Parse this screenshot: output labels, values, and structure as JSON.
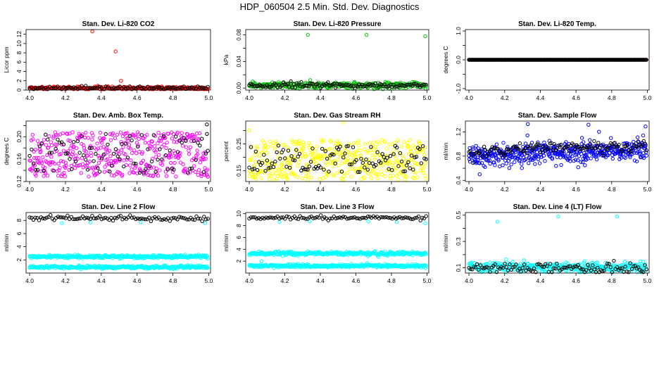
{
  "figure": {
    "title": "HDP_060504  2.5 Min. Std. Dev. Diagnostics"
  },
  "chart_data": [
    {
      "id": "co2",
      "type": "scatter",
      "title": "Stan. Dev. Li-820 CO2",
      "xlabel": "",
      "ylabel": "Licor ppm",
      "xlim": [
        3.98,
        5.01
      ],
      "ylim": [
        0,
        13
      ],
      "xticks": [
        4.0,
        4.2,
        4.4,
        4.6,
        4.8,
        5.0
      ],
      "yticks": [
        0,
        2,
        4,
        6,
        8,
        10,
        12
      ],
      "series": [
        {
          "name": "primary",
          "color": "#ff0000",
          "gen": {
            "n": 260,
            "base": 0.42,
            "noise": 0.18,
            "seed": 11
          },
          "outliers": [
            [
              4.35,
              12.6
            ],
            [
              4.48,
              8.3
            ],
            [
              4.51,
              2.0
            ],
            [
              4.38,
              0.9
            ]
          ]
        },
        {
          "name": "secondary",
          "color": "#000000",
          "gen": {
            "n": 90,
            "base": 0.5,
            "noise": 0.15,
            "seed": 12
          }
        }
      ]
    },
    {
      "id": "pressure",
      "type": "scatter",
      "title": "Stan. Dev. Li-820 Pressure",
      "xlabel": "",
      "ylabel": "kPa",
      "xlim": [
        3.98,
        5.01
      ],
      "ylim": [
        -0.003,
        0.088
      ],
      "xticks": [
        4.0,
        4.2,
        4.4,
        4.6,
        4.8,
        5.0
      ],
      "yticks": [
        0.0,
        0.02,
        0.04,
        0.06,
        0.08
      ],
      "ytickLabels": [
        "0.00",
        "",
        "0.04",
        "",
        "0.08"
      ],
      "series": [
        {
          "name": "primary",
          "color": "#00c000",
          "gen": {
            "n": 300,
            "base": 0.0045,
            "noise": 0.0025,
            "seed": 21
          },
          "outliers": [
            [
              4.33,
              0.08
            ],
            [
              4.66,
              0.08
            ],
            [
              4.99,
              0.078
            ]
          ]
        },
        {
          "name": "secondary",
          "color": "#000000",
          "gen": {
            "n": 120,
            "base": 0.004,
            "noise": 0.002,
            "seed": 22
          }
        }
      ]
    },
    {
      "id": "temp",
      "type": "scatter",
      "title": "Stan. Dev. Li-820 Temp.",
      "xlabel": "",
      "ylabel": "degrees C",
      "xlim": [
        3.98,
        5.01
      ],
      "ylim": [
        -1.05,
        1.05
      ],
      "xticks": [
        4.0,
        4.2,
        4.4,
        4.6,
        4.8,
        5.0
      ],
      "yticks": [
        -1.0,
        -0.5,
        0.0,
        0.5,
        1.0
      ],
      "ytickLabels": [
        "-1.0",
        "",
        "0.0",
        "",
        "1.0"
      ],
      "series": [
        {
          "name": "primary",
          "color": "#ff00ff",
          "gen": {
            "n": 60,
            "base": 0.0,
            "noise": 0.0,
            "seed": 31
          }
        },
        {
          "name": "secondary",
          "color": "#000000",
          "gen": {
            "n": 260,
            "base": 0.0,
            "noise": 0.0,
            "seed": 32
          }
        }
      ]
    },
    {
      "id": "ambbox",
      "type": "scatter",
      "title": "Stan. Dev. Amb. Box Temp.",
      "xlabel": "",
      "ylabel": "degrees C",
      "xlim": [
        3.98,
        5.01
      ],
      "ylim": [
        0.12,
        0.228
      ],
      "xticks": [
        4.0,
        4.2,
        4.4,
        4.6,
        4.8,
        5.0
      ],
      "yticks": [
        0.12,
        0.14,
        0.16,
        0.18,
        0.2,
        0.22
      ],
      "ytickLabels": [
        "0.12",
        "",
        "0.16",
        "",
        "0.20",
        ""
      ],
      "series": [
        {
          "name": "primary",
          "color": "#ff00ff",
          "gen": {
            "n": 420,
            "base": 0.168,
            "noise": 0.04,
            "seed": 41,
            "uniform": true
          }
        },
        {
          "name": "secondary",
          "color": "#000000",
          "gen": {
            "n": 90,
            "base": 0.17,
            "noise": 0.035,
            "seed": 42,
            "uniform": true
          },
          "outliers": [
            [
              4.99,
              0.222
            ],
            [
              4.99,
              0.205
            ]
          ]
        }
      ]
    },
    {
      "id": "rh",
      "type": "scatter",
      "title": "Stan. Dev. Gas Stream RH",
      "xlabel": "",
      "ylabel": "percent",
      "xlim": [
        3.98,
        5.01
      ],
      "ylim": [
        0.11,
        0.335
      ],
      "xticks": [
        4.0,
        4.2,
        4.4,
        4.6,
        4.8,
        5.0
      ],
      "yticks": [
        0.15,
        0.2,
        0.25,
        0.3
      ],
      "ytickLabels": [
        "0.15",
        "",
        "0.25",
        ""
      ],
      "series": [
        {
          "name": "primary",
          "color": "#ffff00",
          "gen": {
            "n": 420,
            "base": 0.19,
            "noise": 0.075,
            "seed": 51,
            "uniform": true
          },
          "outliers": [
            [
              4.53,
              0.33
            ],
            [
              4.0,
              0.3
            ]
          ]
        },
        {
          "name": "secondary",
          "color": "#000000",
          "gen": {
            "n": 110,
            "base": 0.195,
            "noise": 0.05,
            "seed": 52,
            "uniform": true
          }
        }
      ]
    },
    {
      "id": "sampleflow",
      "type": "scatter",
      "title": "Stan. Dev. Sample Flow",
      "xlabel": "",
      "ylabel": "ml/min",
      "xlim": [
        3.98,
        5.01
      ],
      "ylim": [
        0.38,
        1.38
      ],
      "xticks": [
        4.0,
        4.2,
        4.4,
        4.6,
        4.8,
        5.0
      ],
      "yticks": [
        0.4,
        0.6,
        0.8,
        1.0,
        1.2
      ],
      "ytickLabels": [
        "0.4",
        "",
        "0.8",
        "",
        "1.2"
      ],
      "series": [
        {
          "name": "primary",
          "color": "#0000ff",
          "gen": {
            "n": 480,
            "base": 0.78,
            "slope": 0.25,
            "noise": 0.09,
            "seed": 61
          },
          "outliers": [
            [
              4.33,
              1.33
            ],
            [
              4.67,
              1.32
            ],
            [
              4.99,
              1.29
            ],
            [
              4.06,
              0.5
            ],
            [
              4.09,
              0.62
            ],
            [
              4.37,
              0.67
            ],
            [
              4.65,
              0.65
            ]
          ]
        },
        {
          "name": "secondary",
          "color": "#000000",
          "gen": {
            "n": 130,
            "base": 0.87,
            "slope": 0.2,
            "noise": 0.05,
            "seed": 62
          }
        }
      ]
    },
    {
      "id": "line2",
      "type": "scatter",
      "title": "Stan. Dev. Line 2 Flow",
      "xlabel": "",
      "ylabel": "ml/min",
      "xlim": [
        3.98,
        5.01
      ],
      "ylim": [
        0,
        9.2
      ],
      "xticks": [
        4.0,
        4.2,
        4.4,
        4.6,
        4.8,
        5.0
      ],
      "yticks": [
        2,
        4,
        6,
        8
      ],
      "series": [
        {
          "name": "primary-high",
          "color": "#00ffff",
          "gen": {
            "n": 330,
            "base": 2.5,
            "noise": 0.12,
            "seed": 71
          }
        },
        {
          "name": "primary-low",
          "color": "#00ffff",
          "gen": {
            "n": 330,
            "base": 0.9,
            "noise": 0.12,
            "seed": 72
          },
          "outliers": [
            [
              4.18,
              7.6
            ],
            [
              4.34,
              7.7
            ],
            [
              4.62,
              7.7
            ],
            [
              4.98,
              7.6
            ]
          ]
        },
        {
          "name": "secondary",
          "color": "#000000",
          "gen": {
            "n": 95,
            "base": 8.3,
            "noise": 0.18,
            "seed": 73
          }
        }
      ]
    },
    {
      "id": "line3",
      "type": "scatter",
      "title": "Stan. Dev. Line 3 Flow",
      "xlabel": "",
      "ylabel": "ml/min",
      "xlim": [
        3.98,
        5.01
      ],
      "ylim": [
        0,
        10.2
      ],
      "xticks": [
        4.0,
        4.2,
        4.4,
        4.6,
        4.8,
        5.0
      ],
      "yticks": [
        2,
        4,
        6,
        8,
        10
      ],
      "series": [
        {
          "name": "primary-high",
          "color": "#00ffff",
          "gen": {
            "n": 330,
            "base": 3.3,
            "noise": 0.15,
            "seed": 81
          }
        },
        {
          "name": "primary-low",
          "color": "#00ffff",
          "gen": {
            "n": 330,
            "base": 1.2,
            "noise": 0.13,
            "seed": 82
          },
          "outliers": [
            [
              4.17,
              8.6
            ],
            [
              4.34,
              8.7
            ],
            [
              4.67,
              8.7
            ],
            [
              4.83,
              8.6
            ],
            [
              4.99,
              8.4
            ],
            [
              4.07,
              2.0
            ]
          ]
        },
        {
          "name": "secondary",
          "color": "#000000",
          "gen": {
            "n": 95,
            "base": 9.3,
            "noise": 0.15,
            "seed": 83
          }
        }
      ]
    },
    {
      "id": "line4",
      "type": "scatter",
      "title": "Stan. Dev. Line 4 (LT) Flow",
      "xlabel": "",
      "ylabel": "ml/min",
      "xlim": [
        3.98,
        5.01
      ],
      "ylim": [
        0.06,
        0.52
      ],
      "xticks": [
        4.0,
        4.2,
        4.4,
        4.6,
        4.8,
        5.0
      ],
      "yticks": [
        0.1,
        0.2,
        0.3,
        0.4,
        0.5
      ],
      "ytickLabels": [
        "0.1",
        "",
        "0.3",
        "",
        "0.5"
      ],
      "series": [
        {
          "name": "primary",
          "color": "#00ffff",
          "gen": {
            "n": 330,
            "base": 0.105,
            "noise": 0.02,
            "seed": 91
          },
          "outliers": [
            [
              4.16,
              0.45
            ],
            [
              4.5,
              0.49
            ],
            [
              4.83,
              0.49
            ]
          ]
        },
        {
          "name": "secondary",
          "color": "#000000",
          "gen": {
            "n": 110,
            "base": 0.1,
            "noise": 0.018,
            "seed": 92
          }
        }
      ]
    }
  ]
}
